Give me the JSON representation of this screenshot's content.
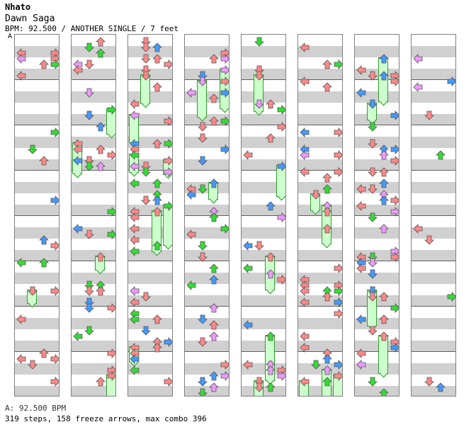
{
  "header": {
    "artist": "Nhato",
    "title": "Dawn Saga",
    "info": "BPM: 92.500 / ANOTHER SINGLE / 7 feet",
    "bpm_marker": "A"
  },
  "footer": {
    "bpm_line": "A: 92.500 BPM",
    "stats": "319 steps, 158 freeze arrows, max combo 396"
  },
  "colors": {
    "quarter": "#ff8888",
    "eighth": "#4499ff",
    "sixteenth": "#33dd33",
    "twelfth": "#ee99ff",
    "freeze_body": "#ccffcc",
    "freeze_border": "#339933"
  },
  "chart_data": {
    "type": "step-chart",
    "measures": 64,
    "columns": 8,
    "measures_per_column": 8,
    "lanes": [
      "left",
      "down",
      "up",
      "right"
    ]
  }
}
